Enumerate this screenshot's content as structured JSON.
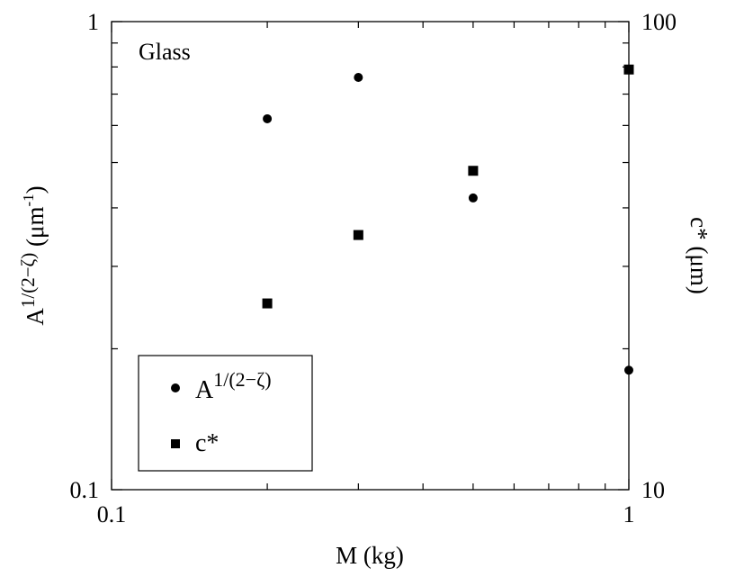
{
  "chart_data": {
    "type": "scatter",
    "annotation": "Glass",
    "xlabel": "M (kg)",
    "ylabel_left": {
      "base": "A",
      "sup": "1/(2−ζ)",
      "unit_pre": " (μm",
      "unit_sup": "-1",
      "unit_post": ")"
    },
    "ylabel_right": "c* (μm)",
    "x_scale": "log",
    "xlim": [
      0.1,
      1
    ],
    "ylim_left": [
      0.1,
      1
    ],
    "ylim_right": [
      10,
      100
    ],
    "x_ticklabels": [
      {
        "value": 0.1,
        "label": "0.1"
      },
      {
        "value": 1,
        "label": "1"
      }
    ],
    "yleft_ticklabels": [
      {
        "value": 0.1,
        "label": "0.1"
      },
      {
        "value": 1,
        "label": "1"
      }
    ],
    "yright_ticklabels": [
      {
        "value": 10,
        "label": "10"
      },
      {
        "value": 100,
        "label": "100"
      }
    ],
    "grid": false,
    "legend_position": "bottom-left",
    "series": [
      {
        "name": "A1/(2−ζ)",
        "legend_base": "A",
        "legend_sup": "1/(2−ζ)",
        "marker": "circle",
        "axis": "left",
        "x": [
          0.2,
          0.3,
          0.5,
          1.0
        ],
        "y": [
          0.62,
          0.76,
          0.42,
          0.18
        ]
      },
      {
        "name": "c*",
        "legend_base": "c*",
        "legend_sup": "",
        "marker": "square",
        "axis": "right",
        "x": [
          0.2,
          0.3,
          0.5,
          1.0
        ],
        "y": [
          25,
          35,
          48,
          79
        ]
      }
    ]
  }
}
